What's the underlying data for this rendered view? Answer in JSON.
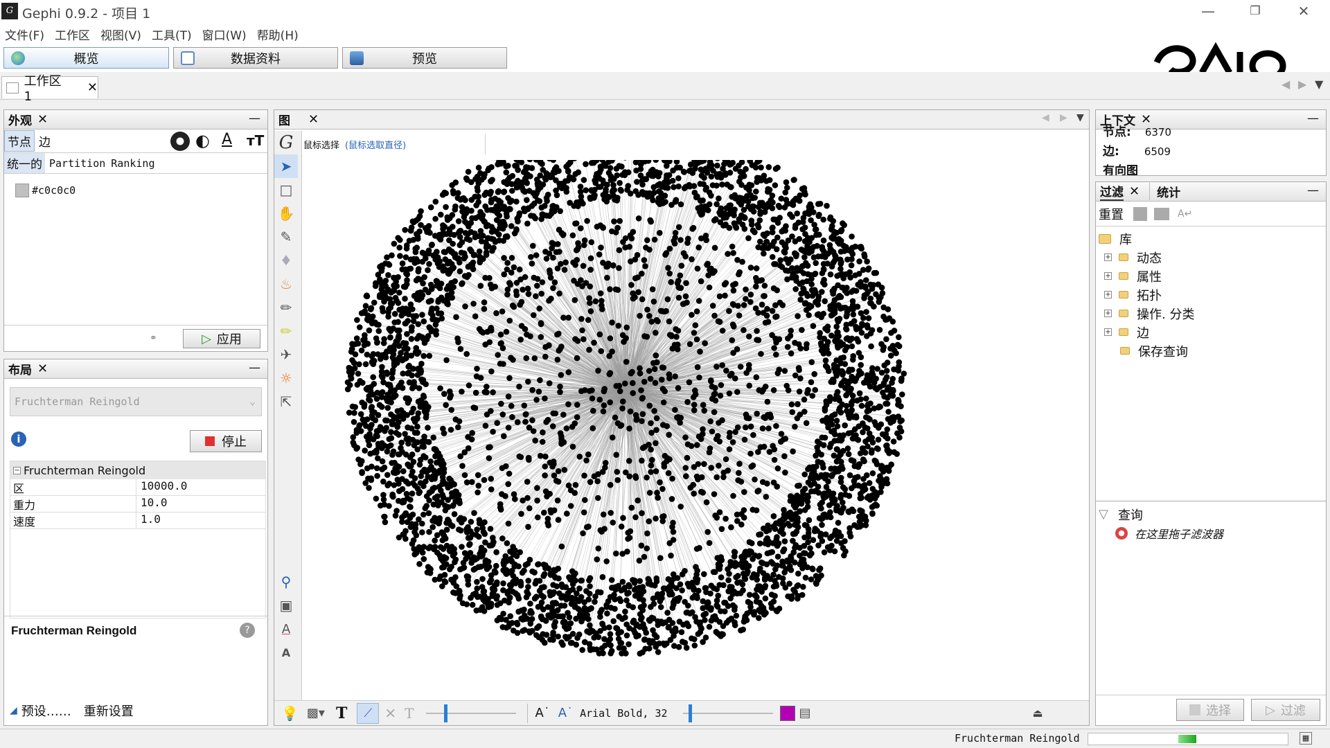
{
  "window": {
    "title": "Gephi 0.9.2 - 项目 1",
    "app_icon": "gephi-icon"
  },
  "menu": [
    "文件(F)",
    "工作区",
    "视图(V)",
    "工具(T)",
    "窗口(W)",
    "帮助(H)"
  ],
  "main_tabs": [
    {
      "label": "概览",
      "active": true
    },
    {
      "label": "数据资料",
      "active": false
    },
    {
      "label": "预览",
      "active": false
    }
  ],
  "workspace_tab": "工作区 1",
  "appearance": {
    "title": "外观",
    "tabs": [
      "节点",
      "边"
    ],
    "modes": [
      "统一的",
      "Partition",
      "Ranking"
    ],
    "color_value": "#c0c0c0",
    "apply": "应用"
  },
  "layout": {
    "title": "布局",
    "algorithm": "Fruchterman Reingold",
    "stop": "停止",
    "group": "Fruchterman Reingold",
    "props": [
      {
        "name": "区",
        "value": "10000.0"
      },
      {
        "name": "重力",
        "value": "10.0"
      },
      {
        "name": "速度",
        "value": "1.0"
      }
    ],
    "desc_title": "Fruchterman Reingold",
    "presets": "预设……",
    "reset": "重新设置"
  },
  "graph": {
    "title": "图",
    "mode_label": "鼠标选择",
    "mode_hint": "(鼠标选取直径)",
    "font_label": "Arial Bold, 32"
  },
  "context": {
    "title": "上下文",
    "nodes_label": "节点:",
    "nodes_value": "6370",
    "edges_label": "边:",
    "edges_value": "6509",
    "directed": "有向图"
  },
  "filters": {
    "tab1": "过滤",
    "tab2": "统计",
    "reset": "重置",
    "library": "库",
    "items": [
      "动态",
      "属性",
      "拓扑",
      "操作. 分类",
      "边",
      "保存查询"
    ],
    "query": "查询",
    "drop_hint": "在这里拖子滤波器",
    "select_btn": "选择",
    "filter_btn": "过滤"
  },
  "status": {
    "layout_name": "Fruchterman Reingold"
  },
  "colors": {
    "node": "#000000",
    "edge": "#9a9a9a",
    "accent": "#7a9cc6",
    "swatch_magenta": "#b400b4"
  }
}
